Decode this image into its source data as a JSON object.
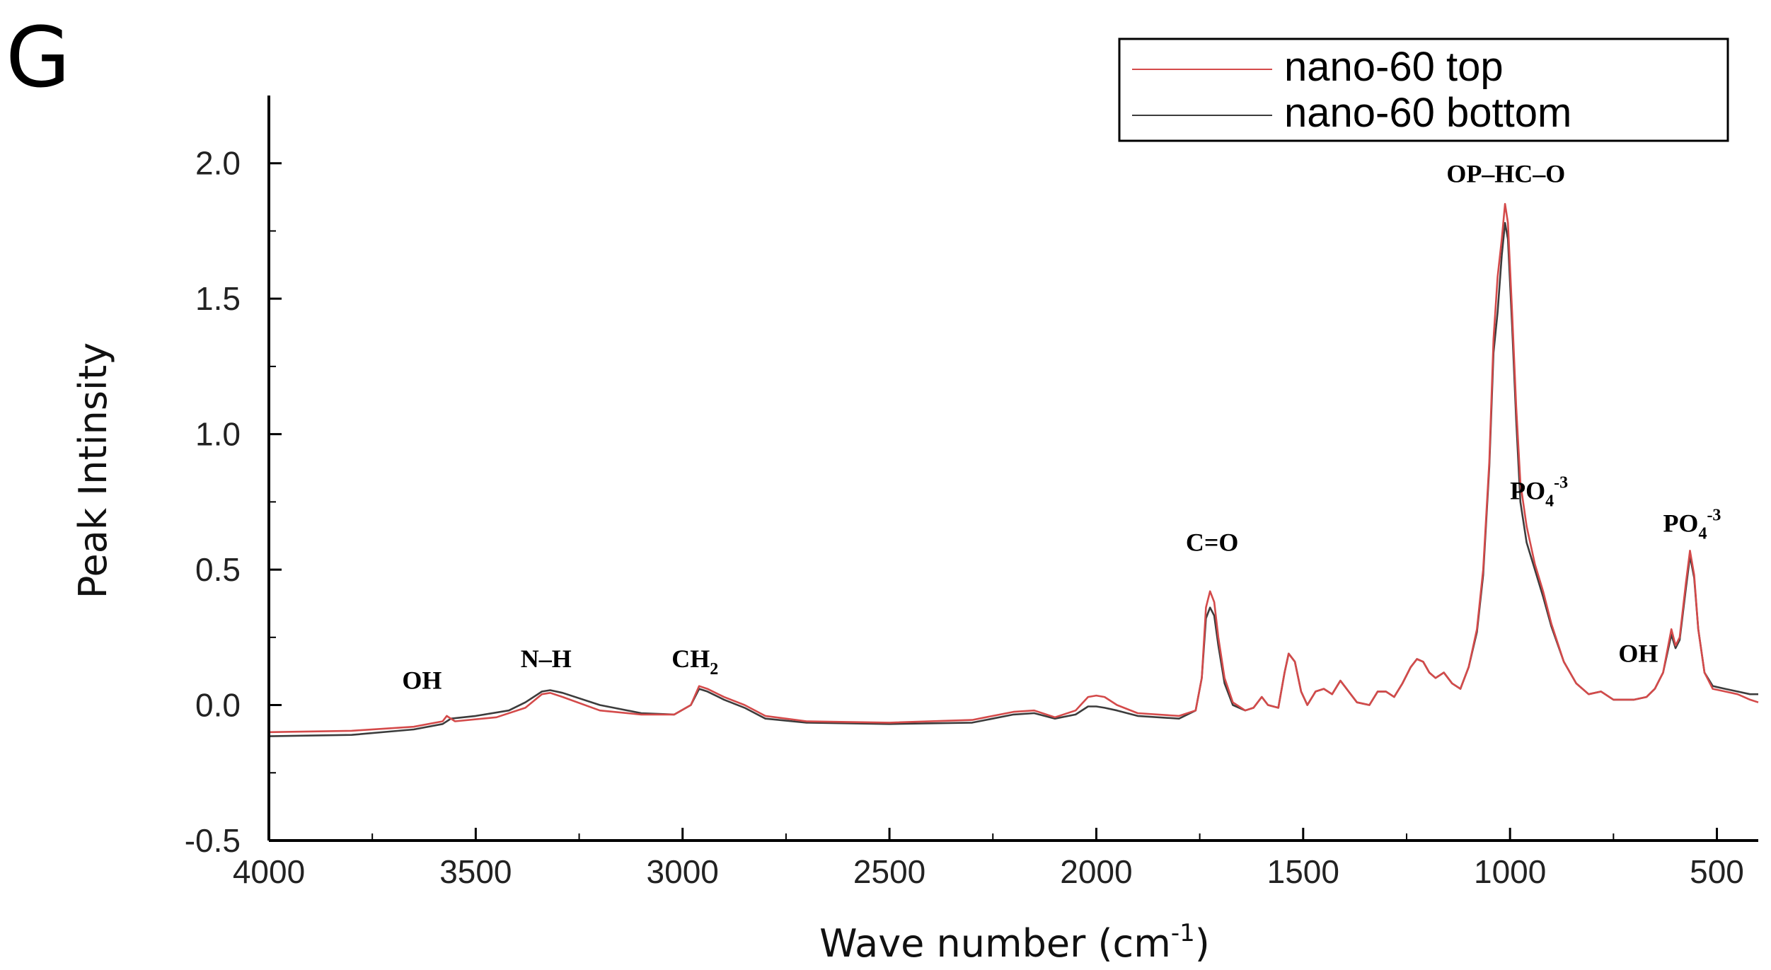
{
  "panel_label": "G",
  "chart_data": {
    "type": "line",
    "title": "",
    "xlabel": "Wave number (cm",
    "xlabel_sup": "-1",
    "xlabel_close": ")",
    "ylabel": "Peak Intinsity",
    "xlim": [
      4000,
      400
    ],
    "ylim": [
      -0.5,
      2.25
    ],
    "x_reversed": true,
    "x_ticks": [
      4000,
      3500,
      3000,
      2500,
      2000,
      1500,
      1000,
      500
    ],
    "x_tick_labels": [
      "4000",
      "3500",
      "3000",
      "2500",
      "2000",
      "1500",
      "1000",
      "500"
    ],
    "y_ticks": [
      -0.5,
      0.0,
      0.5,
      1.0,
      1.5,
      2.0
    ],
    "y_tick_labels": [
      "-0.5",
      "0.0",
      "0.5",
      "1.0",
      "1.5",
      "2.0"
    ],
    "grid": false,
    "legend_position": "top-right",
    "series": [
      {
        "name": "nano-60 top",
        "color": "#d44a4a",
        "points": [
          [
            4000,
            -0.1
          ],
          [
            3800,
            -0.095
          ],
          [
            3650,
            -0.08
          ],
          [
            3580,
            -0.06
          ],
          [
            3570,
            -0.04
          ],
          [
            3550,
            -0.06
          ],
          [
            3450,
            -0.045
          ],
          [
            3380,
            -0.01
          ],
          [
            3340,
            0.04
          ],
          [
            3320,
            0.045
          ],
          [
            3290,
            0.03
          ],
          [
            3200,
            -0.02
          ],
          [
            3100,
            -0.035
          ],
          [
            3020,
            -0.035
          ],
          [
            2980,
            0.0
          ],
          [
            2960,
            0.07
          ],
          [
            2940,
            0.06
          ],
          [
            2900,
            0.03
          ],
          [
            2850,
            0.0
          ],
          [
            2800,
            -0.04
          ],
          [
            2700,
            -0.06
          ],
          [
            2500,
            -0.065
          ],
          [
            2300,
            -0.055
          ],
          [
            2200,
            -0.025
          ],
          [
            2150,
            -0.02
          ],
          [
            2100,
            -0.045
          ],
          [
            2050,
            -0.02
          ],
          [
            2020,
            0.03
          ],
          [
            2000,
            0.035
          ],
          [
            1980,
            0.03
          ],
          [
            1950,
            0.0
          ],
          [
            1900,
            -0.03
          ],
          [
            1800,
            -0.04
          ],
          [
            1760,
            -0.02
          ],
          [
            1745,
            0.1
          ],
          [
            1735,
            0.36
          ],
          [
            1725,
            0.42
          ],
          [
            1715,
            0.38
          ],
          [
            1705,
            0.25
          ],
          [
            1690,
            0.1
          ],
          [
            1670,
            0.01
          ],
          [
            1640,
            -0.02
          ],
          [
            1620,
            -0.01
          ],
          [
            1600,
            0.03
          ],
          [
            1585,
            0.0
          ],
          [
            1560,
            -0.01
          ],
          [
            1545,
            0.12
          ],
          [
            1535,
            0.19
          ],
          [
            1520,
            0.16
          ],
          [
            1505,
            0.05
          ],
          [
            1490,
            0.0
          ],
          [
            1470,
            0.05
          ],
          [
            1450,
            0.06
          ],
          [
            1430,
            0.04
          ],
          [
            1410,
            0.09
          ],
          [
            1395,
            0.06
          ],
          [
            1370,
            0.01
          ],
          [
            1340,
            0.0
          ],
          [
            1320,
            0.05
          ],
          [
            1300,
            0.05
          ],
          [
            1280,
            0.03
          ],
          [
            1260,
            0.08
          ],
          [
            1240,
            0.14
          ],
          [
            1225,
            0.17
          ],
          [
            1210,
            0.16
          ],
          [
            1195,
            0.12
          ],
          [
            1180,
            0.1
          ],
          [
            1160,
            0.12
          ],
          [
            1140,
            0.08
          ],
          [
            1120,
            0.06
          ],
          [
            1100,
            0.14
          ],
          [
            1080,
            0.28
          ],
          [
            1065,
            0.5
          ],
          [
            1050,
            0.9
          ],
          [
            1040,
            1.35
          ],
          [
            1030,
            1.58
          ],
          [
            1020,
            1.72
          ],
          [
            1012,
            1.85
          ],
          [
            1005,
            1.78
          ],
          [
            995,
            1.45
          ],
          [
            985,
            1.1
          ],
          [
            975,
            0.82
          ],
          [
            960,
            0.66
          ],
          [
            940,
            0.52
          ],
          [
            920,
            0.42
          ],
          [
            900,
            0.3
          ],
          [
            870,
            0.16
          ],
          [
            840,
            0.08
          ],
          [
            810,
            0.04
          ],
          [
            780,
            0.05
          ],
          [
            750,
            0.02
          ],
          [
            700,
            0.02
          ],
          [
            670,
            0.03
          ],
          [
            650,
            0.06
          ],
          [
            630,
            0.12
          ],
          [
            610,
            0.28
          ],
          [
            600,
            0.22
          ],
          [
            590,
            0.25
          ],
          [
            575,
            0.45
          ],
          [
            565,
            0.57
          ],
          [
            555,
            0.48
          ],
          [
            545,
            0.28
          ],
          [
            530,
            0.12
          ],
          [
            510,
            0.06
          ],
          [
            480,
            0.05
          ],
          [
            450,
            0.04
          ],
          [
            420,
            0.02
          ],
          [
            400,
            0.01
          ]
        ]
      },
      {
        "name": "nano-60 bottom",
        "color": "#3c3c3c",
        "points": [
          [
            4000,
            -0.115
          ],
          [
            3800,
            -0.11
          ],
          [
            3650,
            -0.09
          ],
          [
            3580,
            -0.07
          ],
          [
            3560,
            -0.05
          ],
          [
            3500,
            -0.04
          ],
          [
            3420,
            -0.02
          ],
          [
            3380,
            0.01
          ],
          [
            3340,
            0.05
          ],
          [
            3320,
            0.055
          ],
          [
            3290,
            0.045
          ],
          [
            3200,
            0.0
          ],
          [
            3100,
            -0.03
          ],
          [
            3020,
            -0.035
          ],
          [
            2980,
            0.0
          ],
          [
            2960,
            0.06
          ],
          [
            2940,
            0.05
          ],
          [
            2900,
            0.02
          ],
          [
            2850,
            -0.01
          ],
          [
            2800,
            -0.05
          ],
          [
            2700,
            -0.065
          ],
          [
            2500,
            -0.07
          ],
          [
            2300,
            -0.065
          ],
          [
            2200,
            -0.035
          ],
          [
            2150,
            -0.03
          ],
          [
            2100,
            -0.05
          ],
          [
            2050,
            -0.035
          ],
          [
            2020,
            -0.005
          ],
          [
            2000,
            -0.005
          ],
          [
            1980,
            -0.01
          ],
          [
            1950,
            -0.02
          ],
          [
            1900,
            -0.04
          ],
          [
            1800,
            -0.05
          ],
          [
            1760,
            -0.02
          ],
          [
            1745,
            0.1
          ],
          [
            1735,
            0.32
          ],
          [
            1725,
            0.36
          ],
          [
            1715,
            0.33
          ],
          [
            1705,
            0.22
          ],
          [
            1690,
            0.08
          ],
          [
            1670,
            0.0
          ],
          [
            1640,
            -0.02
          ],
          [
            1620,
            -0.01
          ],
          [
            1600,
            0.03
          ],
          [
            1585,
            0.0
          ],
          [
            1560,
            -0.01
          ],
          [
            1545,
            0.12
          ],
          [
            1535,
            0.19
          ],
          [
            1520,
            0.16
          ],
          [
            1505,
            0.05
          ],
          [
            1490,
            0.0
          ],
          [
            1470,
            0.05
          ],
          [
            1450,
            0.06
          ],
          [
            1430,
            0.04
          ],
          [
            1410,
            0.09
          ],
          [
            1395,
            0.06
          ],
          [
            1370,
            0.01
          ],
          [
            1340,
            0.0
          ],
          [
            1320,
            0.05
          ],
          [
            1300,
            0.05
          ],
          [
            1280,
            0.03
          ],
          [
            1260,
            0.08
          ],
          [
            1240,
            0.14
          ],
          [
            1225,
            0.17
          ],
          [
            1210,
            0.16
          ],
          [
            1195,
            0.12
          ],
          [
            1180,
            0.1
          ],
          [
            1160,
            0.12
          ],
          [
            1140,
            0.08
          ],
          [
            1120,
            0.06
          ],
          [
            1100,
            0.14
          ],
          [
            1080,
            0.27
          ],
          [
            1065,
            0.48
          ],
          [
            1050,
            0.88
          ],
          [
            1040,
            1.3
          ],
          [
            1030,
            1.45
          ],
          [
            1020,
            1.66
          ],
          [
            1012,
            1.78
          ],
          [
            1005,
            1.72
          ],
          [
            995,
            1.4
          ],
          [
            985,
            1.05
          ],
          [
            975,
            0.75
          ],
          [
            960,
            0.6
          ],
          [
            940,
            0.5
          ],
          [
            920,
            0.4
          ],
          [
            900,
            0.29
          ],
          [
            870,
            0.16
          ],
          [
            840,
            0.08
          ],
          [
            810,
            0.04
          ],
          [
            780,
            0.05
          ],
          [
            750,
            0.02
          ],
          [
            700,
            0.02
          ],
          [
            670,
            0.03
          ],
          [
            650,
            0.06
          ],
          [
            630,
            0.12
          ],
          [
            610,
            0.26
          ],
          [
            600,
            0.21
          ],
          [
            590,
            0.24
          ],
          [
            575,
            0.43
          ],
          [
            565,
            0.55
          ],
          [
            555,
            0.47
          ],
          [
            545,
            0.28
          ],
          [
            530,
            0.12
          ],
          [
            510,
            0.07
          ],
          [
            480,
            0.06
          ],
          [
            450,
            0.05
          ],
          [
            420,
            0.04
          ],
          [
            400,
            0.04
          ]
        ]
      }
    ],
    "annotations": [
      {
        "text": "OH",
        "x": 3630,
        "y": 0.06
      },
      {
        "text": "N–H",
        "x": 3330,
        "y": 0.14
      },
      {
        "text": "CH",
        "sub": "2",
        "x": 2970,
        "y": 0.14
      },
      {
        "text": "C=O",
        "x": 1720,
        "y": 0.57
      },
      {
        "text": "OP–HC–O",
        "x": 1010,
        "y": 1.93
      },
      {
        "text": "PO",
        "sub": "4",
        "sup": "-3",
        "x": 930,
        "y": 0.76
      },
      {
        "text": "OH",
        "x": 690,
        "y": 0.16
      },
      {
        "text": "PO",
        "sub": "4",
        "sup": "-3",
        "x": 560,
        "y": 0.64
      }
    ]
  }
}
